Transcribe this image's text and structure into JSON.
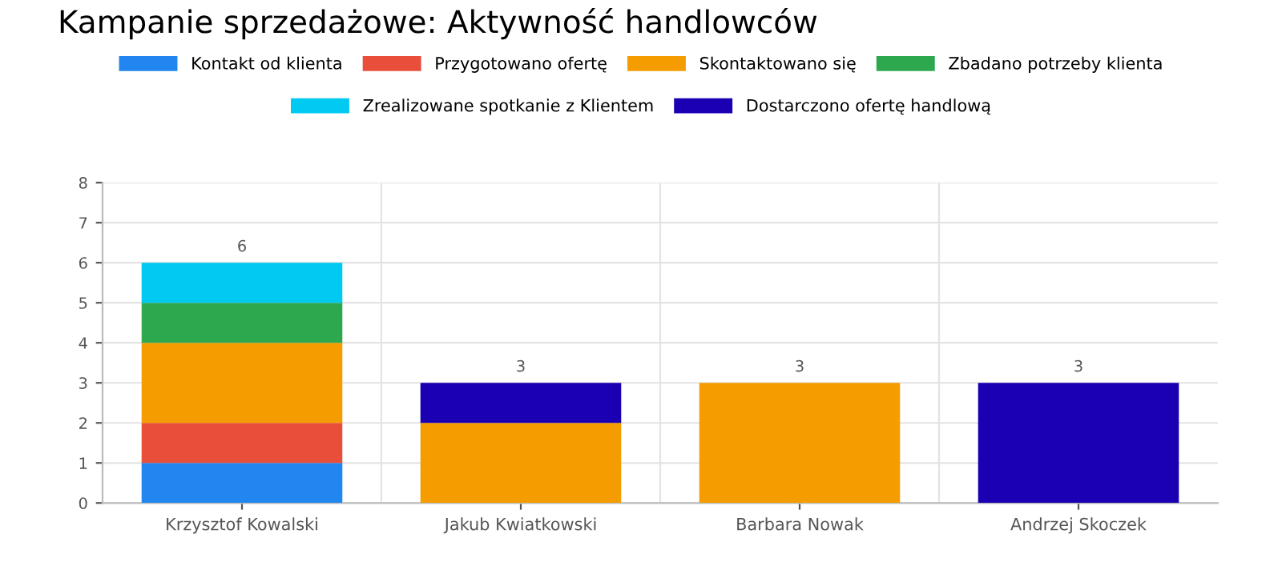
{
  "chart_data": {
    "type": "bar",
    "title": "Kampanie sprzedażowe: Aktywność handlowców",
    "categories": [
      "Krzysztof Kowalski",
      "Jakub Kwiatkowski",
      "Barbara Nowak",
      "Andrzej Skoczek"
    ],
    "stacked": true,
    "series": [
      {
        "name": "Kontakt od klienta",
        "color": "#2186f0",
        "values": [
          1,
          null,
          null,
          null
        ]
      },
      {
        "name": "Przygotowano ofertę",
        "color": "#e84e3a",
        "values": [
          1,
          null,
          null,
          null
        ]
      },
      {
        "name": "Skontaktowano się",
        "color": "#f59d00",
        "values": [
          2,
          2,
          3,
          null
        ]
      },
      {
        "name": "Zbadano potrzeby klienta",
        "color": "#2ea84f",
        "values": [
          1,
          null,
          null,
          null
        ]
      },
      {
        "name": "Zrealizowane spotkanie z Klientem",
        "color": "#00caf2",
        "values": [
          1,
          null,
          null,
          null
        ]
      },
      {
        "name": "Dostarczono ofertę handlową",
        "color": "#1a00b2",
        "values": [
          null,
          1,
          null,
          3
        ]
      }
    ],
    "totals": [
      "6",
      "3",
      "3",
      "3"
    ],
    "ylim": [
      0,
      8
    ],
    "yticks": [
      0,
      1,
      2,
      3,
      4,
      5,
      6,
      7,
      8
    ],
    "grid": true,
    "legend": "top"
  }
}
